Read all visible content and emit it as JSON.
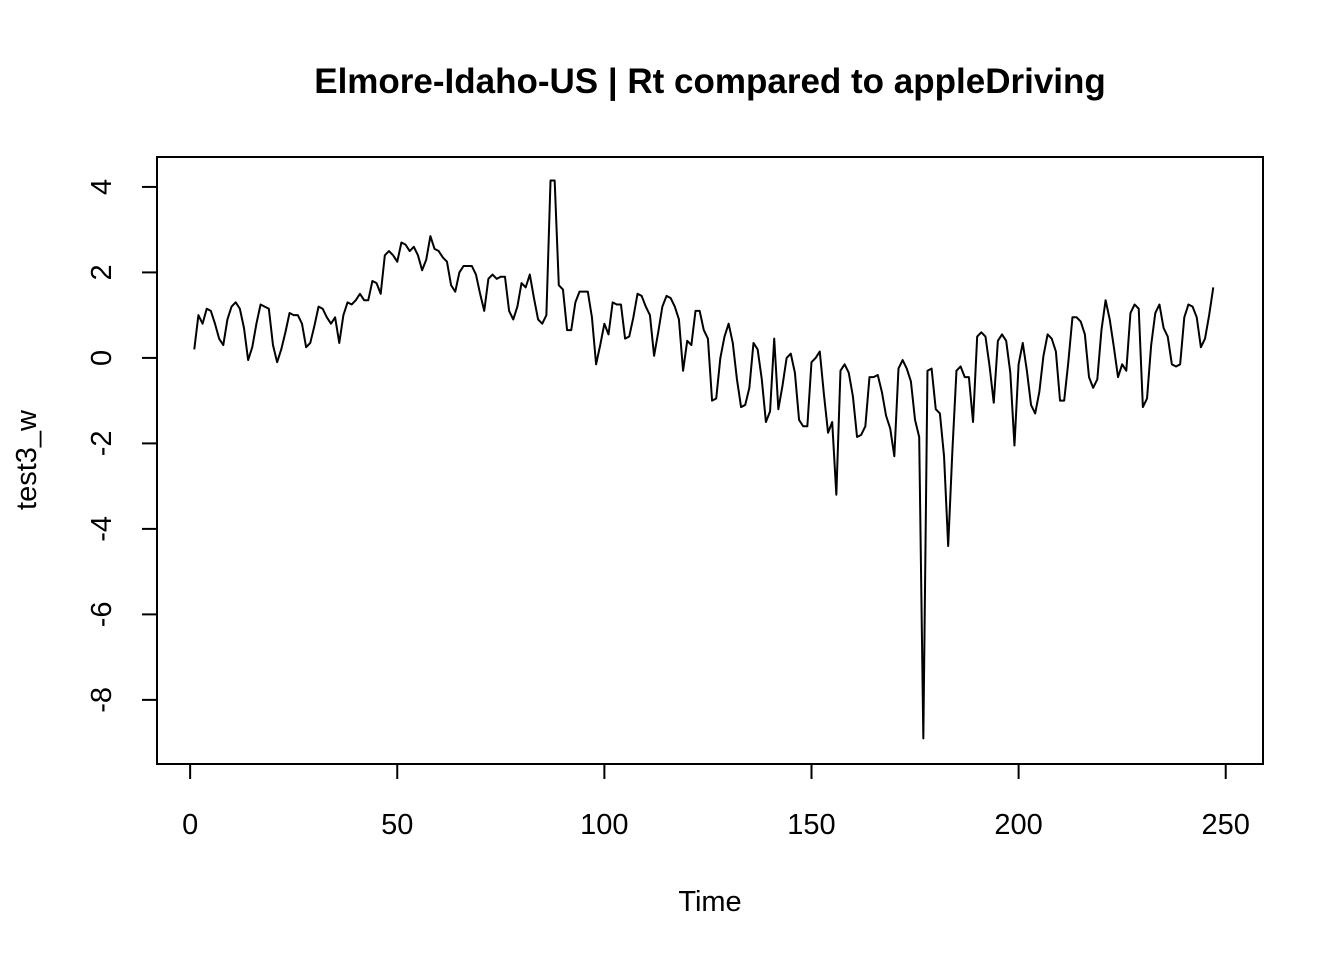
{
  "chart_data": {
    "type": "line",
    "title": "Elmore-Idaho-US | Rt compared to appleDriving",
    "xlabel": "Time",
    "ylabel": "test3_w",
    "xlim": [
      -8,
      259
    ],
    "ylim": [
      -9.5,
      4.7
    ],
    "x_ticks": [
      0,
      50,
      100,
      150,
      200,
      250
    ],
    "y_ticks": [
      -8,
      -6,
      -4,
      -2,
      0,
      2,
      4
    ],
    "grid": false,
    "legend": "none",
    "color": "#000000",
    "x_start": 1,
    "values": [
      0.2,
      1.0,
      0.8,
      1.15,
      1.1,
      0.8,
      0.45,
      0.3,
      0.9,
      1.2,
      1.3,
      1.15,
      0.7,
      -0.05,
      0.25,
      0.8,
      1.25,
      1.2,
      1.15,
      0.3,
      -0.1,
      0.2,
      0.6,
      1.05,
      1.0,
      1.0,
      0.8,
      0.25,
      0.35,
      0.75,
      1.2,
      1.15,
      0.95,
      0.8,
      0.95,
      0.35,
      1.0,
      1.3,
      1.25,
      1.35,
      1.5,
      1.35,
      1.35,
      1.8,
      1.75,
      1.5,
      2.4,
      2.5,
      2.4,
      2.25,
      2.7,
      2.65,
      2.5,
      2.6,
      2.4,
      2.05,
      2.3,
      2.85,
      2.55,
      2.5,
      2.35,
      2.25,
      1.7,
      1.55,
      2.0,
      2.15,
      2.15,
      2.15,
      1.95,
      1.5,
      1.1,
      1.85,
      1.95,
      1.85,
      1.9,
      1.9,
      1.1,
      0.9,
      1.2,
      1.75,
      1.65,
      1.95,
      1.4,
      0.9,
      0.8,
      1.0,
      4.15,
      4.15,
      1.7,
      1.6,
      0.65,
      0.65,
      1.3,
      1.55,
      1.55,
      1.55,
      0.95,
      -0.15,
      0.3,
      0.8,
      0.55,
      1.3,
      1.25,
      1.25,
      0.45,
      0.5,
      0.95,
      1.5,
      1.45,
      1.2,
      1.0,
      0.05,
      0.6,
      1.2,
      1.45,
      1.4,
      1.2,
      0.9,
      -0.3,
      0.4,
      0.3,
      1.1,
      1.1,
      0.65,
      0.45,
      -1.0,
      -0.95,
      0.0,
      0.5,
      0.8,
      0.35,
      -0.5,
      -1.15,
      -1.1,
      -0.7,
      0.35,
      0.2,
      -0.5,
      -1.5,
      -1.25,
      0.45,
      -1.2,
      -0.65,
      0.0,
      0.1,
      -0.35,
      -1.45,
      -1.6,
      -1.6,
      -0.1,
      0.0,
      0.15,
      -0.85,
      -1.75,
      -1.5,
      -3.2,
      -0.3,
      -0.15,
      -0.35,
      -0.9,
      -1.85,
      -1.8,
      -1.6,
      -0.45,
      -0.45,
      -0.4,
      -0.8,
      -1.35,
      -1.65,
      -2.3,
      -0.25,
      -0.05,
      -0.25,
      -0.55,
      -1.45,
      -1.85,
      -8.9,
      -0.3,
      -0.25,
      -1.2,
      -1.3,
      -2.3,
      -4.4,
      -2.2,
      -0.3,
      -0.2,
      -0.45,
      -0.45,
      -1.5,
      0.5,
      0.6,
      0.5,
      -0.2,
      -1.05,
      0.4,
      0.55,
      0.4,
      -0.35,
      -2.05,
      -0.15,
      0.35,
      -0.3,
      -1.1,
      -1.3,
      -0.8,
      0.05,
      0.55,
      0.45,
      0.15,
      -1.0,
      -1.0,
      -0.1,
      0.95,
      0.95,
      0.85,
      0.55,
      -0.45,
      -0.7,
      -0.5,
      0.65,
      1.35,
      0.9,
      0.25,
      -0.45,
      -0.15,
      -0.3,
      1.05,
      1.25,
      1.15,
      -1.15,
      -0.95,
      0.3,
      1.05,
      1.25,
      0.7,
      0.5,
      -0.15,
      -0.2,
      -0.15,
      0.95,
      1.25,
      1.2,
      0.95,
      0.25,
      0.45,
      1.0,
      1.65
    ]
  }
}
